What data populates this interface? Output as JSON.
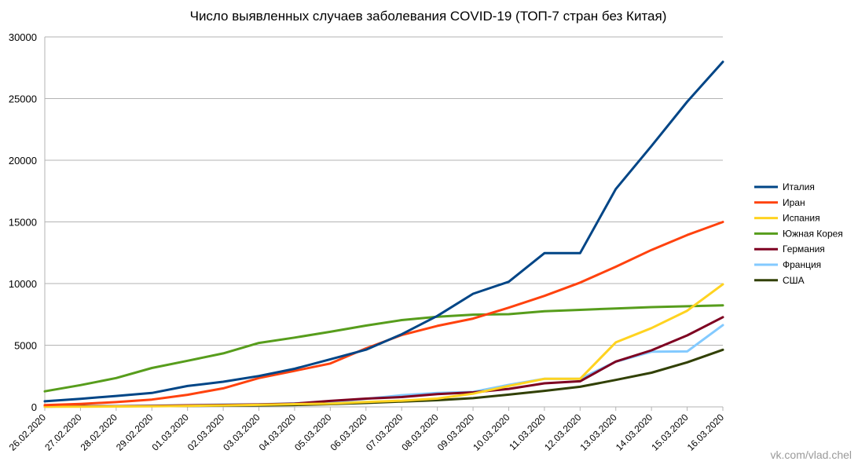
{
  "chart_data": {
    "type": "line",
    "title": "Число выявленных случаев заболевания COVID-19 (ТОП-7 стран без Китая)",
    "xlabel": "",
    "ylabel": "",
    "ylim": [
      0,
      30000
    ],
    "yticks": [
      "0",
      "5000",
      "10000",
      "15000",
      "20000",
      "25000",
      "30000"
    ],
    "grid": true,
    "legend_position": "right",
    "categories": [
      "26.02.2020",
      "27.02.2020",
      "28.02.2020",
      "29.02.2020",
      "01.03.2020",
      "02.03.2020",
      "03.03.2020",
      "04.03.2020",
      "05.03.2020",
      "06.03.2020",
      "07.03.2020",
      "08.03.2020",
      "09.03.2020",
      "10.03.2020",
      "11.03.2020",
      "12.03.2020",
      "13.03.2020",
      "14.03.2020",
      "15.03.2020",
      "16.03.2020"
    ],
    "series": [
      {
        "name": "Италия",
        "color": "#004586",
        "values": [
          453,
          655,
          888,
          1128,
          1694,
          2036,
          2502,
          3089,
          3858,
          4636,
          5883,
          7375,
          9172,
          10149,
          12462,
          12462,
          17660,
          21157,
          24747,
          27980
        ]
      },
      {
        "name": "Иран",
        "color": "#ff420e",
        "values": [
          139,
          245,
          388,
          593,
          978,
          1501,
          2336,
          2922,
          3513,
          4747,
          5823,
          6566,
          7161,
          8042,
          9000,
          10075,
          11364,
          12729,
          13938,
          14991
        ]
      },
      {
        "name": "Испания",
        "color": "#ffd320",
        "values": [
          13,
          15,
          32,
          45,
          84,
          120,
          165,
          222,
          259,
          400,
          500,
          673,
          1073,
          1695,
          2277,
          2277,
          5232,
          6391,
          7798,
          9942
        ]
      },
      {
        "name": "Южная Корея",
        "color": "#579d1c",
        "values": [
          1261,
          1766,
          2337,
          3150,
          3736,
          4335,
          5186,
          5621,
          6088,
          6593,
          7041,
          7314,
          7478,
          7513,
          7755,
          7869,
          7979,
          8086,
          8162,
          8236
        ]
      },
      {
        "name": "Германия",
        "color": "#7e0021",
        "values": [
          27,
          46,
          48,
          79,
          130,
          159,
          196,
          262,
          482,
          670,
          799,
          1040,
          1176,
          1457,
          1908,
          2078,
          3675,
          4585,
          5795,
          7272
        ]
      },
      {
        "name": "Франция",
        "color": "#83caff",
        "values": [
          18,
          38,
          57,
          100,
          130,
          191,
          204,
          285,
          377,
          653,
          949,
          1126,
          1209,
          1784,
          2281,
          2281,
          3661,
          4469,
          4499,
          6633
        ]
      },
      {
        "name": "США",
        "color": "#314004",
        "values": [
          60,
          60,
          62,
          70,
          76,
          101,
          122,
          153,
          221,
          319,
          435,
          541,
          704,
          994,
          1301,
          1630,
          2183,
          2770,
          3613,
          4632
        ]
      }
    ]
  },
  "watermark": "vk.com/vlad.chel"
}
